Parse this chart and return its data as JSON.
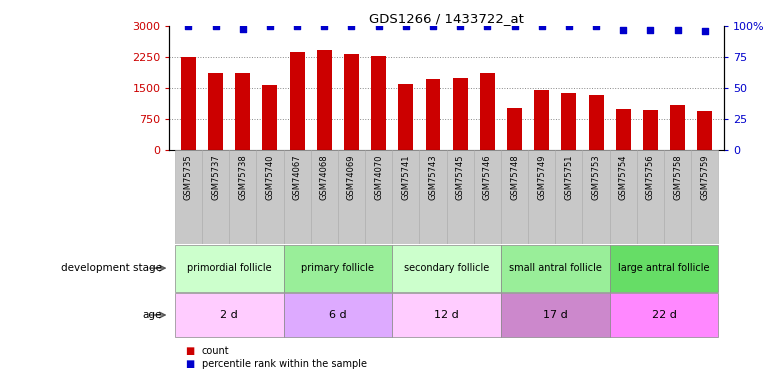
{
  "title": "GDS1266 / 1433722_at",
  "samples": [
    "GSM75735",
    "GSM75737",
    "GSM75738",
    "GSM75740",
    "GSM74067",
    "GSM74068",
    "GSM74069",
    "GSM74070",
    "GSM75741",
    "GSM75743",
    "GSM75745",
    "GSM75746",
    "GSM75748",
    "GSM75749",
    "GSM75751",
    "GSM75753",
    "GSM75754",
    "GSM75756",
    "GSM75758",
    "GSM75759"
  ],
  "counts": [
    2260,
    1870,
    1860,
    1580,
    2380,
    2420,
    2330,
    2290,
    1590,
    1730,
    1740,
    1870,
    1030,
    1450,
    1380,
    1330,
    1000,
    980,
    1080,
    950
  ],
  "percentile": [
    100,
    100,
    98,
    100,
    100,
    100,
    100,
    100,
    100,
    100,
    100,
    100,
    100,
    100,
    100,
    100,
    97,
    97,
    97,
    96
  ],
  "ylim_left": [
    0,
    3000
  ],
  "ylim_right": [
    0,
    100
  ],
  "yticks_left": [
    0,
    750,
    1500,
    2250,
    3000
  ],
  "yticks_right": [
    0,
    25,
    50,
    75,
    100
  ],
  "bar_color": "#cc0000",
  "dot_color": "#0000cc",
  "group_labels": [
    "primordial follicle",
    "primary follicle",
    "secondary follicle",
    "small antral follicle",
    "large antral follicle"
  ],
  "group_starts": [
    0,
    4,
    8,
    12,
    16
  ],
  "group_ends": [
    4,
    8,
    12,
    16,
    20
  ],
  "group_colors": [
    "#ccffcc",
    "#99ee99",
    "#ccffcc",
    "#99ee99",
    "#66dd66"
  ],
  "age_labels": [
    "2 d",
    "6 d",
    "12 d",
    "17 d",
    "22 d"
  ],
  "age_starts": [
    0,
    4,
    8,
    12,
    16
  ],
  "age_ends": [
    4,
    8,
    12,
    16,
    20
  ],
  "age_colors": [
    "#ffccff",
    "#ddaaff",
    "#ffccff",
    "#cc88cc",
    "#ff88ff"
  ],
  "legend_count_color": "#cc0000",
  "legend_pct_color": "#0000cc",
  "tick_bg_color": "#c8c8c8",
  "grid_color": "#888888",
  "dot_size": 20
}
